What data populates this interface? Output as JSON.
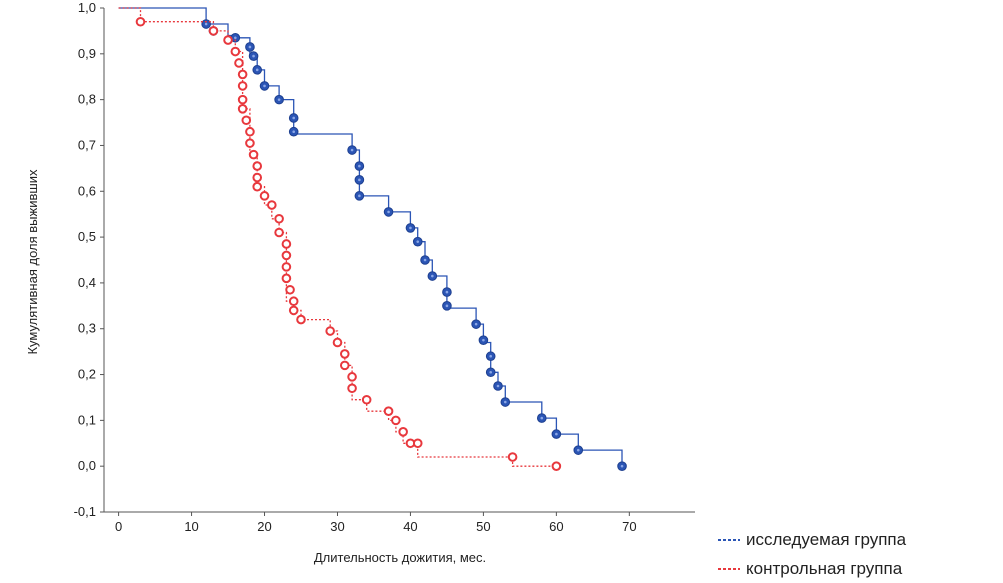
{
  "chart_data": {
    "type": "line",
    "subtype": "kaplan-meier-step",
    "title": "",
    "xlabel": "Длительность дожития, мес.",
    "ylabel": "Кумулятивная доля выживших",
    "xlim": [
      -2,
      79
    ],
    "ylim": [
      -0.1,
      1.0
    ],
    "xticks": [
      0,
      10,
      20,
      30,
      40,
      50,
      60,
      70
    ],
    "yticks": [
      -0.1,
      0.0,
      0.1,
      0.2,
      0.3,
      0.4,
      0.5,
      0.6,
      0.7,
      0.8,
      0.9,
      1.0
    ],
    "yticklabels": [
      "-0,1",
      "0,0",
      "0,1",
      "0,2",
      "0,3",
      "0,4",
      "0,5",
      "0,6",
      "0,7",
      "0,8",
      "0,9",
      "1,0"
    ],
    "grid": false,
    "legend_position": "bottom-right, outside plot",
    "series": [
      {
        "name": "исследуемая группа",
        "color": "#2b55b5",
        "line_style": "solid",
        "marker_color": "#2b55b5",
        "step_x": [
          0,
          12,
          12,
          15,
          15,
          16,
          16,
          18,
          18,
          19,
          19,
          20,
          20,
          22,
          22,
          24,
          24,
          32,
          32,
          33,
          33,
          37,
          37,
          40,
          40,
          41,
          41,
          42,
          42,
          43,
          43,
          45,
          45,
          49,
          49,
          50,
          50,
          51,
          51,
          52,
          52,
          53,
          53,
          58,
          58,
          60,
          60,
          63,
          63,
          69,
          69
        ],
        "step_y": [
          1.0,
          1.0,
          0.965,
          0.965,
          0.94,
          0.94,
          0.935,
          0.935,
          0.895,
          0.895,
          0.865,
          0.865,
          0.83,
          0.83,
          0.8,
          0.8,
          0.725,
          0.725,
          0.69,
          0.69,
          0.59,
          0.59,
          0.555,
          0.555,
          0.52,
          0.52,
          0.49,
          0.49,
          0.45,
          0.45,
          0.415,
          0.415,
          0.345,
          0.345,
          0.31,
          0.31,
          0.27,
          0.27,
          0.205,
          0.205,
          0.175,
          0.175,
          0.14,
          0.14,
          0.105,
          0.105,
          0.07,
          0.07,
          0.035,
          0.035,
          0.0
        ],
        "markers_x": [
          12,
          13,
          16,
          18,
          18.5,
          19,
          20,
          22,
          24,
          24,
          32,
          33,
          33,
          33,
          37,
          40,
          41,
          42,
          43,
          45,
          45,
          49,
          50,
          51,
          51,
          52,
          53,
          58,
          60,
          63,
          69
        ],
        "markers_y": [
          0.965,
          0.95,
          0.935,
          0.915,
          0.895,
          0.865,
          0.83,
          0.8,
          0.76,
          0.73,
          0.69,
          0.655,
          0.625,
          0.59,
          0.555,
          0.52,
          0.49,
          0.45,
          0.415,
          0.38,
          0.35,
          0.31,
          0.275,
          0.24,
          0.205,
          0.175,
          0.14,
          0.105,
          0.07,
          0.035,
          0.0
        ]
      },
      {
        "name": "контрольная группа",
        "color": "#e8383d",
        "line_style": "dotted",
        "marker_color": "#e8383d",
        "step_x": [
          0,
          3,
          3,
          13,
          13,
          15,
          15,
          16,
          16,
          17,
          17,
          18,
          18,
          19,
          19,
          20,
          20,
          21,
          21,
          22,
          22,
          23,
          23,
          24,
          24,
          25,
          25,
          29,
          29,
          30,
          30,
          31,
          31,
          32,
          32,
          34,
          34,
          37,
          37,
          38,
          38,
          39,
          39,
          41,
          41,
          54,
          54,
          60,
          60
        ],
        "step_y": [
          1.0,
          1.0,
          0.97,
          0.97,
          0.95,
          0.95,
          0.93,
          0.93,
          0.905,
          0.905,
          0.78,
          0.78,
          0.68,
          0.68,
          0.61,
          0.61,
          0.57,
          0.57,
          0.54,
          0.54,
          0.51,
          0.51,
          0.36,
          0.36,
          0.34,
          0.34,
          0.32,
          0.32,
          0.295,
          0.295,
          0.27,
          0.27,
          0.22,
          0.22,
          0.145,
          0.145,
          0.12,
          0.12,
          0.1,
          0.1,
          0.075,
          0.075,
          0.05,
          0.05,
          0.02,
          0.02,
          0.0,
          0.0,
          0.0
        ],
        "markers_x": [
          3,
          13,
          15,
          16,
          16.5,
          17,
          17,
          17,
          17,
          17.5,
          18,
          18,
          18.5,
          19,
          19,
          19,
          20,
          21,
          22,
          22,
          23,
          23,
          23,
          23,
          23.5,
          24,
          24,
          25,
          29,
          30,
          31,
          31,
          32,
          32,
          34,
          37,
          38,
          39,
          40,
          41,
          54,
          60
        ],
        "markers_y": [
          0.97,
          0.95,
          0.93,
          0.905,
          0.88,
          0.855,
          0.83,
          0.8,
          0.78,
          0.755,
          0.73,
          0.705,
          0.68,
          0.655,
          0.63,
          0.61,
          0.59,
          0.57,
          0.54,
          0.51,
          0.485,
          0.46,
          0.435,
          0.41,
          0.385,
          0.36,
          0.34,
          0.32,
          0.295,
          0.27,
          0.245,
          0.22,
          0.195,
          0.17,
          0.145,
          0.12,
          0.1,
          0.075,
          0.05,
          0.05,
          0.02,
          0.0
        ]
      }
    ]
  }
}
